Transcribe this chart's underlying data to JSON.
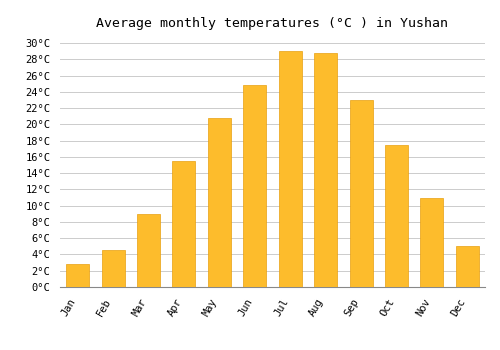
{
  "title": "Average monthly temperatures (°C ) in Yushan",
  "months": [
    "Jan",
    "Feb",
    "Mar",
    "Apr",
    "May",
    "Jun",
    "Jul",
    "Aug",
    "Sep",
    "Oct",
    "Nov",
    "Dec"
  ],
  "values": [
    2.8,
    4.5,
    9.0,
    15.5,
    20.8,
    24.8,
    29.0,
    28.8,
    23.0,
    17.5,
    11.0,
    5.0
  ],
  "bar_color": "#FDBC2C",
  "bar_edge_color": "#E8A010",
  "background_color": "#FFFFFF",
  "grid_color": "#CCCCCC",
  "ylim": [
    0,
    31
  ],
  "yticks": [
    0,
    2,
    4,
    6,
    8,
    10,
    12,
    14,
    16,
    18,
    20,
    22,
    24,
    26,
    28,
    30
  ],
  "title_fontsize": 9.5,
  "tick_fontsize": 7.5,
  "title_font": "monospace",
  "tick_font": "monospace",
  "bar_width": 0.65
}
